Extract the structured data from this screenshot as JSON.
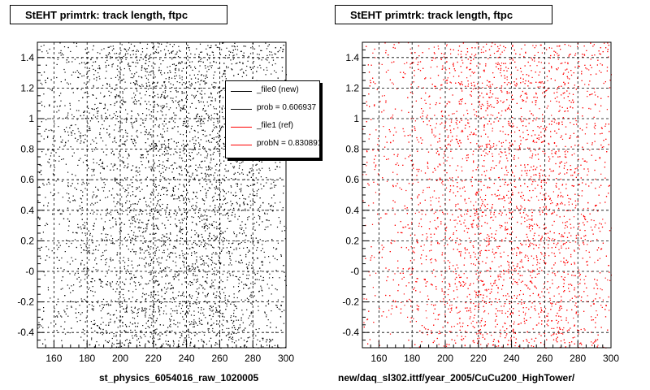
{
  "panels": [
    {
      "title": "StEHT primtrk: track length, ftpc",
      "footer": "st_physics_6054016_raw_1020005",
      "legend": [
        {
          "label": "_file0 (new)",
          "color": "#000000"
        },
        {
          "label": "prob = 0.606937",
          "color": "#000000"
        },
        {
          "label": "_file1 (ref)",
          "color": "#ff0000"
        },
        {
          "label": "probN = 0.830891",
          "color": "#ff0000"
        }
      ]
    },
    {
      "title": "StEHT primtrk: track length, ftpc",
      "footer": "new/daq_sl302.ittf/year_2005/CuCu200_HighTower/"
    }
  ],
  "chart_data": [
    {
      "type": "scatter",
      "title": "StEHT primtrk: track length, ftpc",
      "xlim": [
        150,
        300
      ],
      "ylim": [
        -0.5,
        1.5
      ],
      "xticks": [
        "160",
        "180",
        "200",
        "220",
        "240",
        "260",
        "280",
        "300"
      ],
      "yticks": [
        "-0.4",
        "-0.2",
        "-0",
        "0.2",
        "0.4",
        "0.6",
        "0.8",
        "1",
        "1.2",
        "1.4"
      ],
      "xtick_values": [
        160,
        180,
        200,
        220,
        240,
        260,
        280,
        300
      ],
      "ytick_values": [
        -0.4,
        -0.2,
        0,
        0.2,
        0.4,
        0.6,
        0.8,
        1.0,
        1.2,
        1.4
      ],
      "grid": true,
      "legend_position": "top-right",
      "series": [
        {
          "name": "_file0 (new)",
          "color": "#000000",
          "density_profile": {
            "x": [
              150,
              160,
              180,
              200,
              220,
              240,
              260,
              280,
              300
            ],
            "relative_density": [
              0.25,
              0.3,
              0.55,
              0.85,
              1.0,
              1.0,
              1.0,
              0.6,
              0.3
            ]
          }
        }
      ]
    },
    {
      "type": "scatter",
      "title": "StEHT primtrk: track length, ftpc",
      "xlim": [
        150,
        300
      ],
      "ylim": [
        -0.5,
        1.5
      ],
      "xticks": [
        "160",
        "180",
        "200",
        "220",
        "240",
        "260",
        "280",
        "300"
      ],
      "yticks": [
        "-0.4",
        "-0.2",
        "-0",
        "0.2",
        "0.4",
        "0.6",
        "0.8",
        "1",
        "1.2",
        "1.4"
      ],
      "xtick_values": [
        160,
        180,
        200,
        220,
        240,
        260,
        280,
        300
      ],
      "ytick_values": [
        -0.4,
        -0.2,
        0,
        0.2,
        0.4,
        0.6,
        0.8,
        1.0,
        1.2,
        1.4
      ],
      "grid": true,
      "series": [
        {
          "name": "_file1 (ref)",
          "color": "#ff0000",
          "density_profile": {
            "x": [
              150,
              160,
              180,
              200,
              220,
              240,
              260,
              280,
              300
            ],
            "relative_density": [
              0.2,
              0.25,
              0.45,
              0.75,
              0.95,
              0.95,
              1.0,
              0.7,
              0.35
            ]
          }
        }
      ]
    }
  ]
}
